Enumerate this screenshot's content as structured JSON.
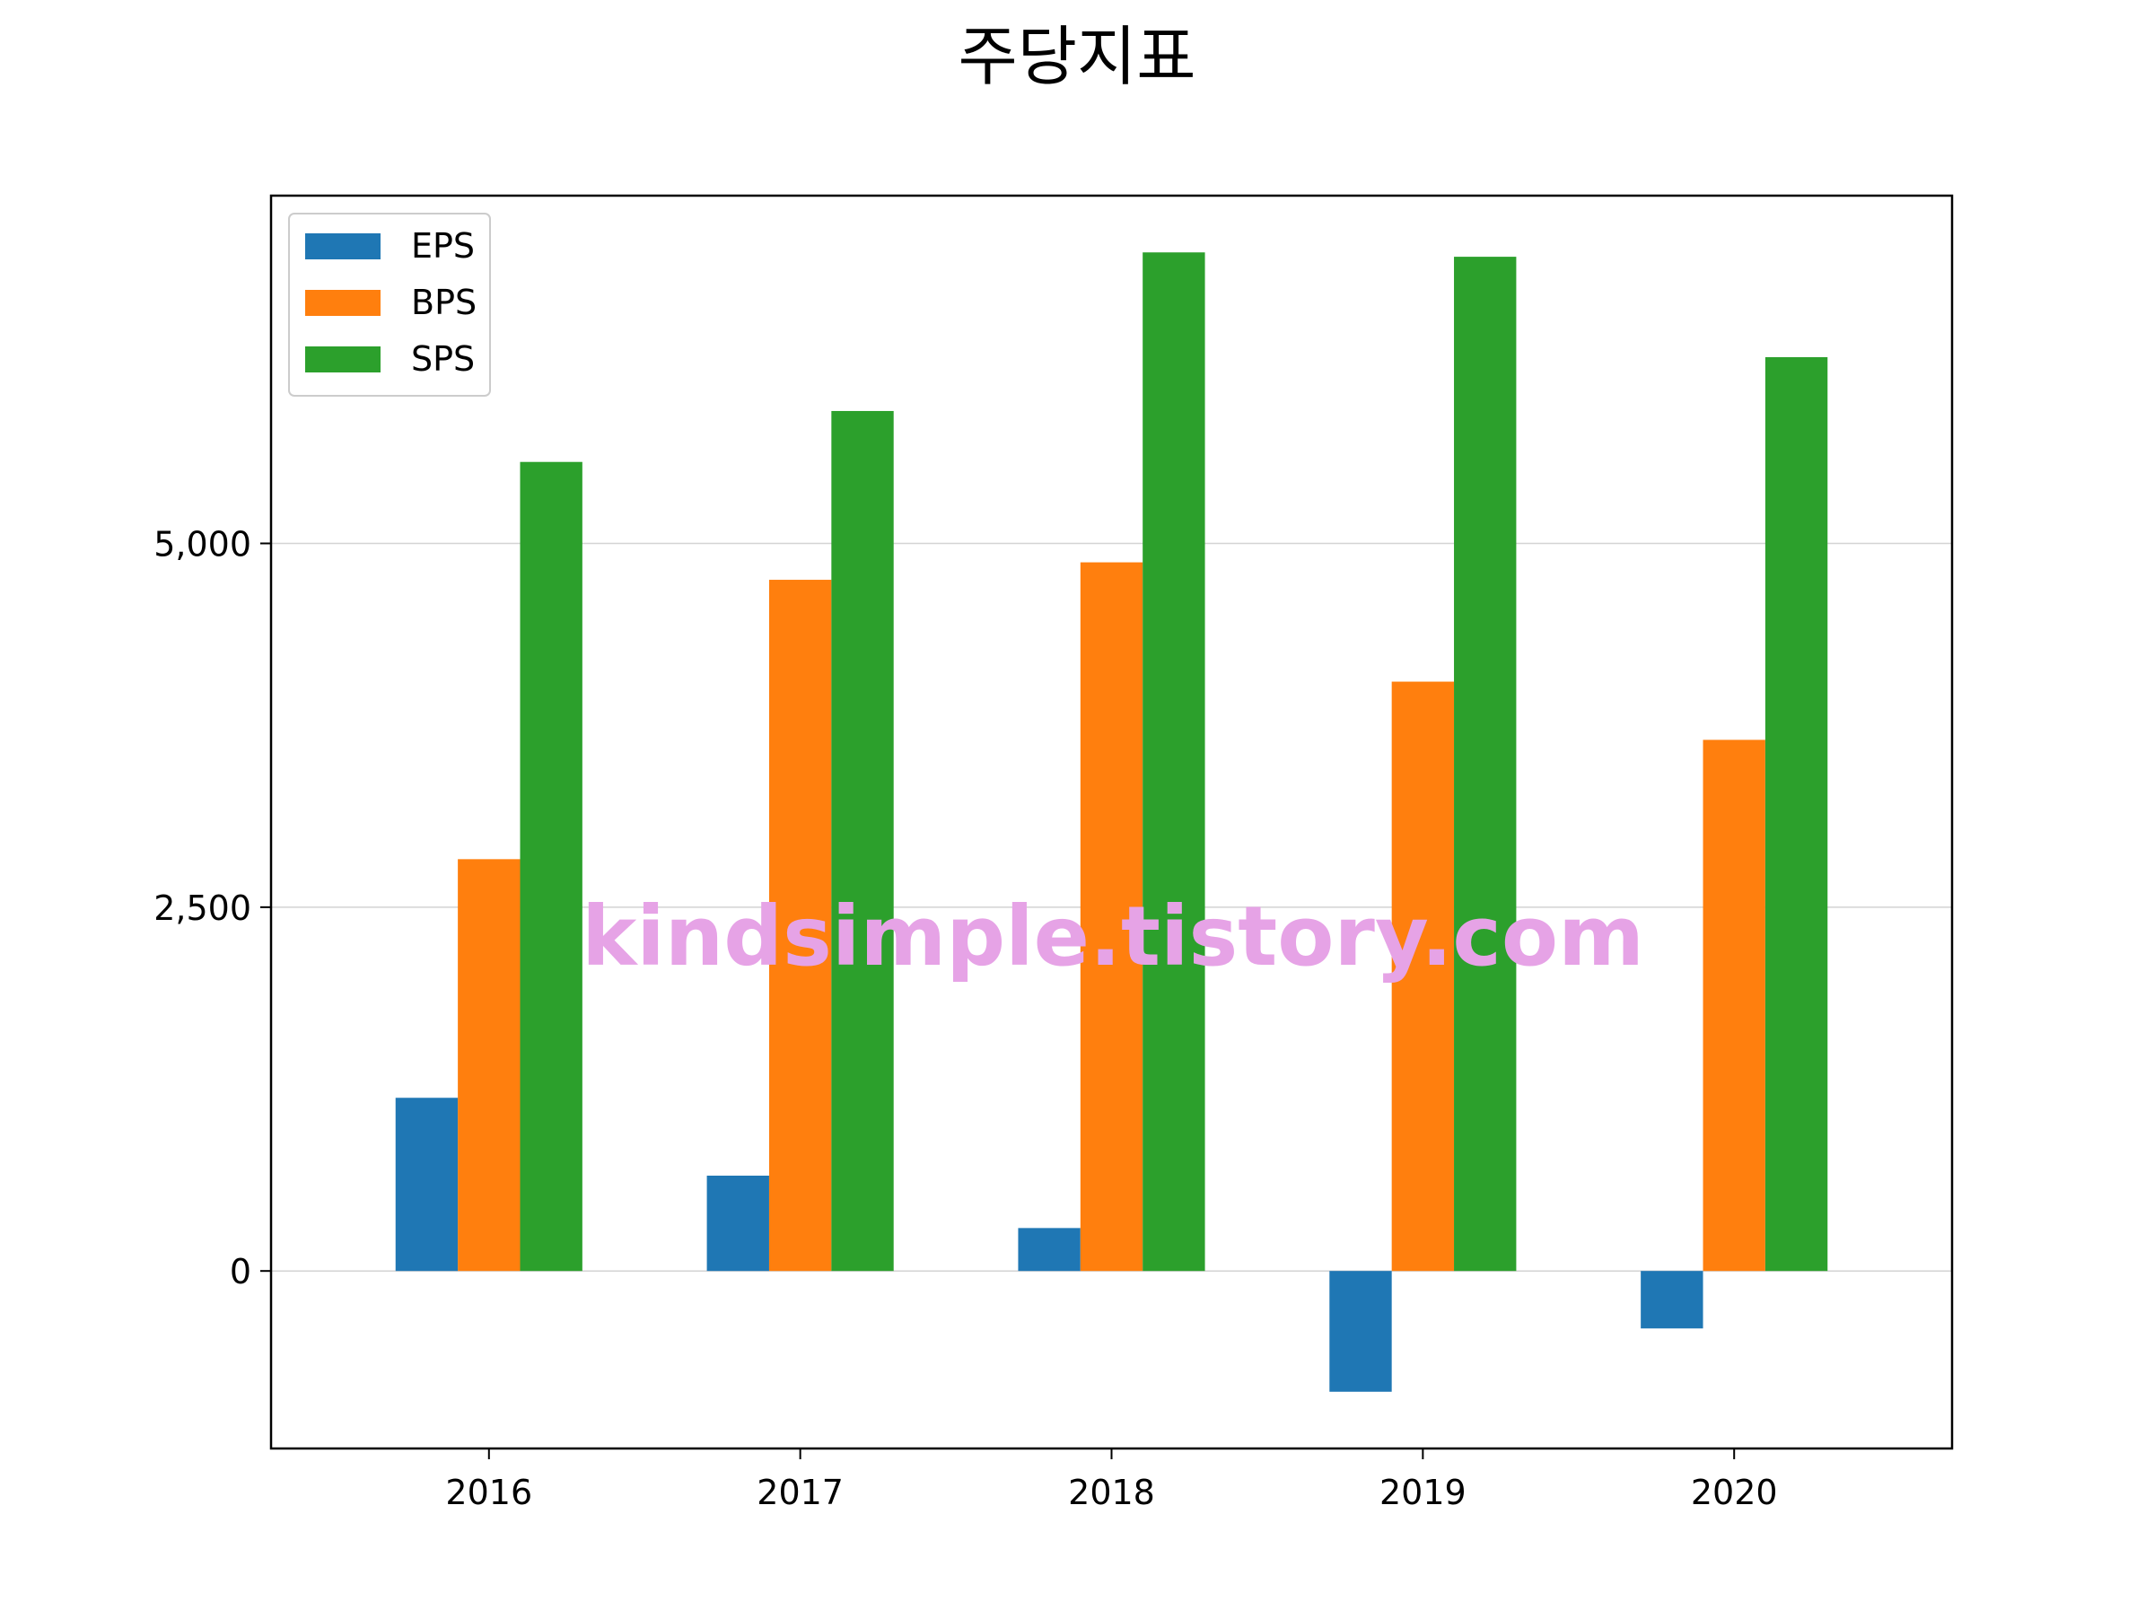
{
  "chart_data": {
    "type": "bar",
    "title": "주당지표",
    "xlabel": "",
    "ylabel": "",
    "categories": [
      "2016",
      "2017",
      "2018",
      "2019",
      "2020"
    ],
    "series": [
      {
        "name": "EPS",
        "color": "#1f77b4",
        "values": [
          1190,
          655,
          295,
          -830,
          -395
        ]
      },
      {
        "name": "BPS",
        "color": "#ff7f0e",
        "values": [
          2830,
          4750,
          4870,
          4050,
          3650
        ]
      },
      {
        "name": "SPS",
        "color": "#2ca02c",
        "values": [
          5560,
          5910,
          7000,
          6970,
          6280
        ]
      }
    ],
    "ylim": [
      -1220,
      7390
    ],
    "yticks": [
      0,
      2500,
      5000
    ],
    "ytick_labels": [
      "0",
      "2,500",
      "5,000"
    ],
    "grid": "y",
    "legend": "top-left",
    "watermark": "kindsimple.tistory.com"
  }
}
